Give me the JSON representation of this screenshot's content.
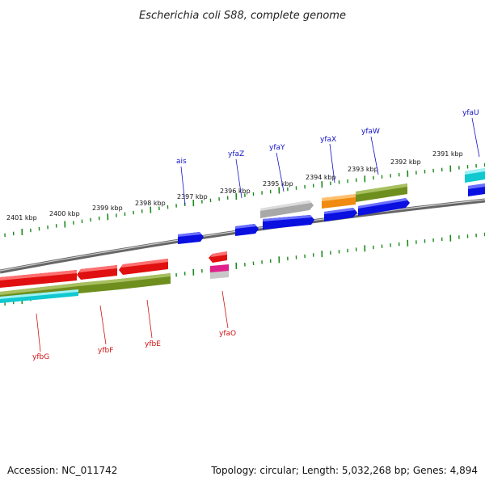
{
  "title": "Escherichia coli S88, complete genome",
  "footer": {
    "accession": "Accession: NC_011742",
    "summary": "Topology: circular; Length: 5,032,268 bp; Genes: 4,894"
  },
  "colors": {
    "backbone": "#7a7a7a",
    "tick": "#1a8a1a",
    "top_label": "#1010c8",
    "bottom_label": "#d01010",
    "gene_blue": "#0a10e0",
    "gene_red": "#e01010",
    "gene_olive": "#6e8e1e",
    "gene_cyan": "#10c8d0",
    "gene_gray": "#a8a8a8",
    "gene_orange": "#f08a10",
    "gene_magenta": "#e0208a"
  },
  "scale": {
    "unit": "kbp",
    "labels": [
      "2401 kbp",
      "2400 kbp",
      "2399 kbp",
      "2398 kbp",
      "2397 kbp",
      "2396 kbp",
      "2395 kbp",
      "2394 kbp",
      "2393 kbp",
      "2392 kbp",
      "2391 kbp"
    ]
  },
  "labels_top": [
    "ais",
    "yfaZ",
    "yfaY",
    "yfaX",
    "yfaW",
    "yfaU"
  ],
  "labels_bottom": [
    "yfbG",
    "yfbF",
    "yfbE",
    "yfaO"
  ]
}
